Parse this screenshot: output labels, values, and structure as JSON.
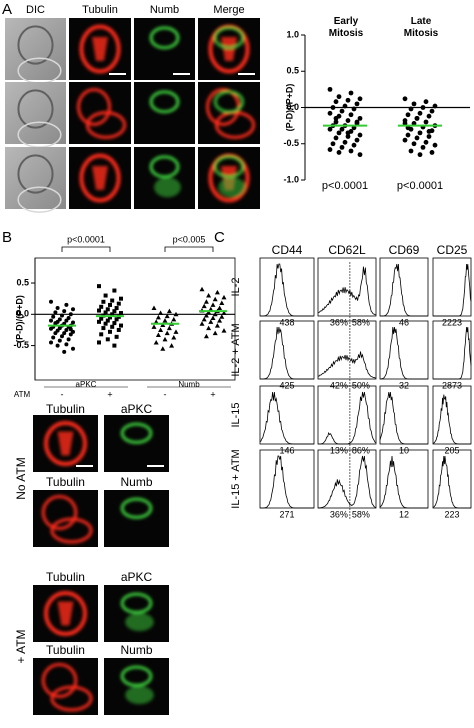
{
  "panel_a": {
    "label": "A",
    "image_columns": [
      "DIC",
      "Tubulin",
      "Numb",
      "Merge"
    ],
    "chart": {
      "type": "scatter",
      "y_label": "(P-D)/(P+D)",
      "categories": [
        "Early Mitosis",
        "Late Mitosis"
      ],
      "groups": [
        [
          0.25,
          0.2,
          0.15,
          0.12,
          0.1,
          0.08,
          0.05,
          0.02,
          0.0,
          -0.02,
          -0.05,
          -0.08,
          -0.1,
          -0.12,
          -0.15,
          -0.18,
          -0.2,
          -0.22,
          -0.25,
          -0.25,
          -0.28,
          -0.3,
          -0.3,
          -0.33,
          -0.35,
          -0.38,
          -0.4,
          -0.42,
          -0.45,
          -0.48,
          -0.5,
          -0.52,
          -0.55,
          -0.58,
          -0.6,
          -0.62,
          -0.65,
          -0.35,
          -0.15,
          -0.2
        ],
        [
          0.12,
          0.08,
          0.05,
          0.02,
          0.0,
          -0.02,
          -0.05,
          -0.08,
          -0.1,
          -0.12,
          -0.15,
          -0.18,
          -0.2,
          -0.22,
          -0.25,
          -0.27,
          -0.3,
          -0.32,
          -0.35,
          -0.38,
          -0.4,
          -0.42,
          -0.45,
          -0.48,
          -0.5,
          -0.52,
          -0.55,
          -0.6,
          -0.62,
          -0.65,
          -0.28,
          -0.33,
          -0.15,
          -0.22
        ]
      ],
      "means": [
        -0.25,
        -0.25
      ],
      "mean_color": "#33cc33",
      "point_color": "#000000",
      "ylim": [
        -1.0,
        1.0
      ],
      "yticks": [
        {
          "value": -1.0,
          "label": "-1.0"
        },
        {
          "value": -0.5,
          "label": "-0.5"
        },
        {
          "value": 0.0,
          "label": "0.0"
        },
        {
          "value": 0.5,
          "label": "0.5"
        },
        {
          "value": 1.0,
          "label": "1.0"
        }
      ],
      "annotations": [
        "p<0.0001",
        "p<0.0001"
      ]
    }
  },
  "panel_b": {
    "label": "B",
    "chart": {
      "type": "scatter",
      "y_label": "(P-D)/(P+D)",
      "x_label": "ATM",
      "treatments": [
        "-",
        "+",
        "-",
        "+"
      ],
      "markers": [
        "aPKC",
        "Numb"
      ],
      "shapes": [
        "circle",
        "square",
        "triangle",
        "triangle"
      ],
      "groups": [
        [
          0.2,
          0.15,
          0.1,
          0.08,
          0.05,
          0.03,
          0.0,
          -0.02,
          -0.04,
          -0.06,
          -0.08,
          -0.1,
          -0.1,
          -0.12,
          -0.13,
          -0.15,
          -0.16,
          -0.18,
          -0.18,
          -0.2,
          -0.2,
          -0.22,
          -0.23,
          -0.25,
          -0.26,
          -0.28,
          -0.3,
          -0.3,
          -0.32,
          -0.35,
          -0.37,
          -0.4,
          -0.42,
          -0.45,
          -0.48,
          -0.5,
          -0.55,
          -0.6,
          -0.14,
          -0.24
        ],
        [
          0.45,
          0.38,
          0.3,
          0.25,
          0.22,
          0.2,
          0.17,
          0.15,
          0.12,
          0.1,
          0.08,
          0.06,
          0.05,
          0.03,
          0.02,
          0.0,
          -0.02,
          -0.04,
          -0.05,
          -0.07,
          -0.08,
          -0.1,
          -0.12,
          -0.14,
          -0.15,
          -0.18,
          -0.2,
          -0.22,
          -0.25,
          -0.28,
          -0.32,
          -0.36,
          -0.4,
          -0.45,
          -0.5
        ],
        [
          0.1,
          0.05,
          0.02,
          0.0,
          -0.03,
          -0.05,
          -0.08,
          -0.1,
          -0.12,
          -0.15,
          -0.17,
          -0.2,
          -0.22,
          -0.25,
          -0.28,
          -0.3,
          -0.33,
          -0.37,
          -0.4,
          -0.45,
          -0.5,
          -0.55
        ],
        [
          0.4,
          0.35,
          0.3,
          0.27,
          0.24,
          0.2,
          0.18,
          0.15,
          0.13,
          0.1,
          0.08,
          0.06,
          0.05,
          0.03,
          0.02,
          0.0,
          -0.02,
          -0.04,
          -0.06,
          -0.08,
          -0.1,
          -0.12,
          -0.15,
          -0.18,
          -0.22,
          -0.26,
          -0.3,
          -0.35
        ]
      ],
      "means": [
        -0.18,
        -0.03,
        -0.15,
        0.05
      ],
      "mean_color": "#33cc33",
      "point_color": "#000000",
      "ylim": [
        -1.05,
        0.9
      ],
      "yticks": [
        {
          "value": -0.5,
          "label": "-0.5"
        },
        {
          "value": 0.0,
          "label": "0.0"
        },
        {
          "value": 0.5,
          "label": "0.5"
        }
      ],
      "p_values": [
        "p<0.0001",
        "p<0.005"
      ]
    },
    "image_rows": [
      {
        "condition": "No ATM",
        "panels": [
          [
            "Tubulin",
            "aPKC"
          ],
          [
            "Tubulin",
            "Numb"
          ]
        ]
      },
      {
        "condition": "+ ATM",
        "panels": [
          [
            "Tubulin",
            "aPKC"
          ],
          [
            "Tubulin",
            "Numb"
          ]
        ]
      }
    ]
  },
  "panel_c": {
    "label": "C",
    "columns": [
      "CD44",
      "CD62L",
      "CD69",
      "CD25"
    ],
    "rows": [
      {
        "label": "IL-2",
        "values": [
          "438",
          [
            "36%",
            "58%"
          ],
          "46",
          "2223"
        ]
      },
      {
        "label": "IL-2 + ATM",
        "values": [
          "425",
          [
            "42%",
            "50%"
          ],
          "32",
          "2873"
        ]
      },
      {
        "label": "IL-15",
        "values": [
          "146",
          [
            "13%",
            "86%"
          ],
          "10",
          "205"
        ]
      },
      {
        "label": "IL-15 + ATM",
        "values": [
          "271",
          [
            "36%",
            "58%"
          ],
          "12",
          "223"
        ]
      }
    ]
  }
}
